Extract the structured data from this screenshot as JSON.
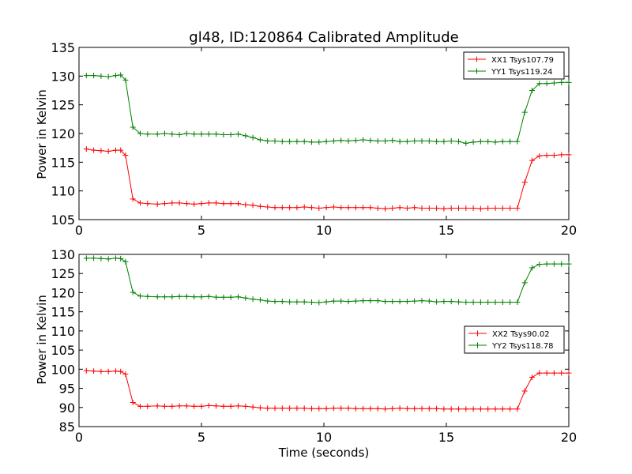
{
  "chart_data": [
    {
      "type": "line",
      "title": "gl48, ID:120864 Calibrated Amplitude",
      "xlabel": "",
      "ylabel": "Power in Kelvin",
      "xlim": [
        0,
        20
      ],
      "ylim": [
        105,
        135
      ],
      "xticks": [
        0,
        5,
        10,
        15,
        20
      ],
      "yticks": [
        105,
        110,
        115,
        120,
        125,
        130,
        135
      ],
      "legend": "top-right",
      "x": [
        0.3,
        0.6,
        0.9,
        1.2,
        1.5,
        1.7,
        1.9,
        2.2,
        2.5,
        2.8,
        3.2,
        3.5,
        3.8,
        4.1,
        4.4,
        4.7,
        5.0,
        5.3,
        5.6,
        5.9,
        6.2,
        6.5,
        6.8,
        7.1,
        7.4,
        7.7,
        8.0,
        8.3,
        8.6,
        8.9,
        9.2,
        9.5,
        9.8,
        10.1,
        10.4,
        10.7,
        11.0,
        11.3,
        11.6,
        11.9,
        12.2,
        12.5,
        12.8,
        13.1,
        13.4,
        13.7,
        14.0,
        14.3,
        14.6,
        14.9,
        15.2,
        15.5,
        15.8,
        16.1,
        16.4,
        16.7,
        17.0,
        17.3,
        17.6,
        17.9,
        18.2,
        18.5,
        18.8,
        19.1,
        19.4,
        19.7,
        20.0
      ],
      "series": [
        {
          "name": "XX1 Tsys107.79",
          "color": "#ff0000",
          "values": [
            117.3,
            117.1,
            117.0,
            116.9,
            117.1,
            117.1,
            116.2,
            108.6,
            107.9,
            107.8,
            107.7,
            107.8,
            107.9,
            107.9,
            107.8,
            107.7,
            107.8,
            107.9,
            107.9,
            107.8,
            107.8,
            107.8,
            107.6,
            107.5,
            107.3,
            107.2,
            107.1,
            107.1,
            107.1,
            107.1,
            107.2,
            107.1,
            107.0,
            107.1,
            107.2,
            107.1,
            107.1,
            107.1,
            107.1,
            107.1,
            107.0,
            106.9,
            107.0,
            107.1,
            107.0,
            107.1,
            107.0,
            107.0,
            107.0,
            106.9,
            107.0,
            107.0,
            107.0,
            107.0,
            106.9,
            107.0,
            107.0,
            107.0,
            107.0,
            107.0,
            111.5,
            115.3,
            116.1,
            116.2,
            116.2,
            116.3,
            116.3
          ]
        },
        {
          "name": "YY1 Tsys119.24",
          "color": "#008000",
          "values": [
            130.1,
            130.1,
            130.0,
            129.9,
            130.1,
            130.2,
            129.3,
            121.1,
            120.0,
            119.9,
            119.9,
            120.0,
            119.9,
            119.8,
            120.0,
            119.9,
            119.9,
            119.9,
            119.9,
            119.8,
            119.8,
            119.9,
            119.6,
            119.3,
            118.9,
            118.7,
            118.7,
            118.6,
            118.6,
            118.6,
            118.6,
            118.5,
            118.5,
            118.6,
            118.7,
            118.8,
            118.7,
            118.8,
            118.9,
            118.8,
            118.7,
            118.7,
            118.8,
            118.6,
            118.6,
            118.7,
            118.7,
            118.7,
            118.6,
            118.6,
            118.7,
            118.6,
            118.3,
            118.5,
            118.6,
            118.6,
            118.5,
            118.6,
            118.6,
            118.6,
            123.7,
            127.5,
            128.7,
            128.7,
            128.8,
            128.9,
            128.9
          ]
        }
      ]
    },
    {
      "type": "line",
      "title": "",
      "xlabel": "Time (seconds)",
      "ylabel": "Power in Kelvin",
      "xlim": [
        0,
        20
      ],
      "ylim": [
        85,
        130
      ],
      "xticks": [
        0,
        5,
        10,
        15,
        20
      ],
      "yticks": [
        85,
        90,
        95,
        100,
        105,
        110,
        115,
        120,
        125,
        130
      ],
      "legend": "center-right",
      "x": [
        0.3,
        0.6,
        0.9,
        1.2,
        1.5,
        1.7,
        1.9,
        2.2,
        2.5,
        2.8,
        3.2,
        3.5,
        3.8,
        4.1,
        4.4,
        4.7,
        5.0,
        5.3,
        5.6,
        5.9,
        6.2,
        6.5,
        6.8,
        7.1,
        7.4,
        7.7,
        8.0,
        8.3,
        8.6,
        8.9,
        9.2,
        9.5,
        9.8,
        10.1,
        10.4,
        10.7,
        11.0,
        11.3,
        11.6,
        11.9,
        12.2,
        12.5,
        12.8,
        13.1,
        13.4,
        13.7,
        14.0,
        14.3,
        14.6,
        14.9,
        15.2,
        15.5,
        15.8,
        16.1,
        16.4,
        16.7,
        17.0,
        17.3,
        17.6,
        17.9,
        18.2,
        18.5,
        18.8,
        19.1,
        19.4,
        19.7,
        20.0
      ],
      "series": [
        {
          "name": "XX2 Tsys90.02",
          "color": "#ff0000",
          "values": [
            99.6,
            99.5,
            99.4,
            99.4,
            99.5,
            99.4,
            98.7,
            91.3,
            90.3,
            90.3,
            90.4,
            90.3,
            90.3,
            90.4,
            90.4,
            90.3,
            90.3,
            90.5,
            90.4,
            90.3,
            90.3,
            90.4,
            90.3,
            90.1,
            89.9,
            89.8,
            89.8,
            89.8,
            89.8,
            89.8,
            89.8,
            89.7,
            89.7,
            89.7,
            89.8,
            89.8,
            89.8,
            89.7,
            89.7,
            89.7,
            89.7,
            89.6,
            89.7,
            89.8,
            89.7,
            89.7,
            89.7,
            89.7,
            89.7,
            89.6,
            89.6,
            89.6,
            89.6,
            89.6,
            89.6,
            89.6,
            89.6,
            89.6,
            89.6,
            89.6,
            94.3,
            97.9,
            99.0,
            99.0,
            99.0,
            99.0,
            99.0
          ]
        },
        {
          "name": "YY2 Tsys118.78",
          "color": "#008000",
          "values": [
            129.0,
            129.0,
            128.9,
            128.8,
            129.0,
            128.9,
            128.1,
            120.1,
            119.1,
            119.0,
            118.9,
            118.9,
            118.9,
            119.0,
            119.0,
            118.9,
            118.9,
            119.0,
            118.8,
            118.8,
            118.8,
            118.9,
            118.6,
            118.3,
            118.1,
            117.8,
            117.7,
            117.7,
            117.6,
            117.6,
            117.6,
            117.5,
            117.4,
            117.6,
            117.8,
            117.8,
            117.7,
            117.8,
            117.9,
            117.9,
            117.9,
            117.7,
            117.7,
            117.7,
            117.7,
            117.8,
            117.9,
            117.8,
            117.6,
            117.7,
            117.7,
            117.6,
            117.5,
            117.5,
            117.5,
            117.5,
            117.5,
            117.5,
            117.5,
            117.5,
            122.6,
            126.5,
            127.4,
            127.5,
            127.5,
            127.5,
            127.5
          ]
        }
      ]
    }
  ]
}
